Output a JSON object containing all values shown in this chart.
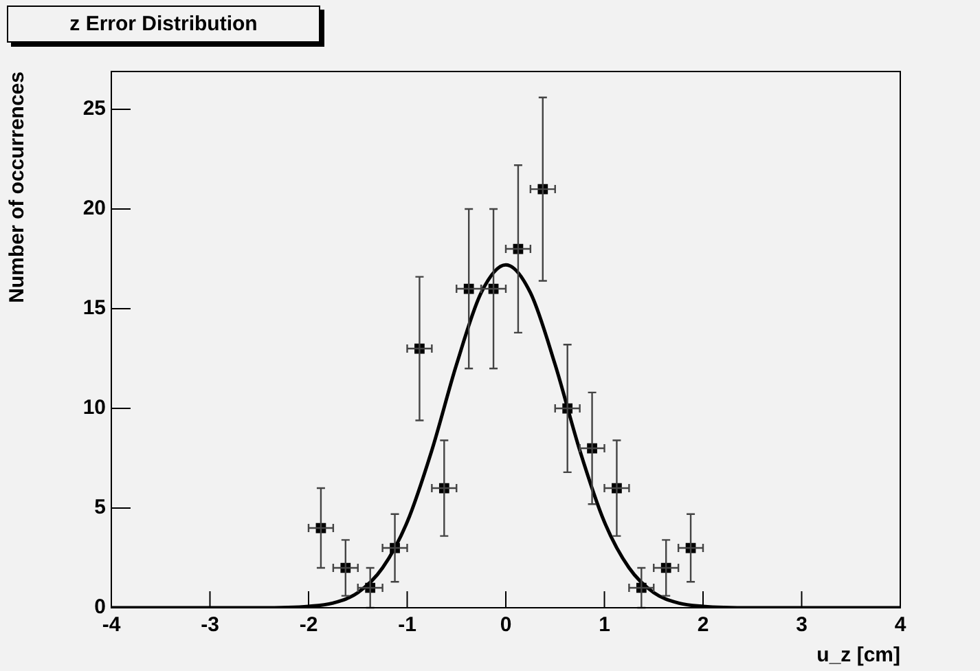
{
  "chart_data": {
    "type": "scatter",
    "title": "z Error Distribution",
    "xlabel": "u_z [cm]",
    "ylabel": "Number of occurrences",
    "xlim": [
      -4,
      4
    ],
    "xticks": [
      -4,
      -3,
      -2,
      -1,
      0,
      1,
      2,
      3,
      4
    ],
    "ylim": [
      0,
      26.9
    ],
    "yticks": [
      0,
      5,
      10,
      15,
      20,
      25
    ],
    "grid": false,
    "legend": false,
    "marker": "square",
    "series": [
      {
        "color": "#000000",
        "x": [
          -1.875,
          -1.625,
          -1.375,
          -1.125,
          -0.875,
          -0.625,
          -0.375,
          -0.125,
          0.125,
          0.375,
          0.625,
          0.875,
          1.125,
          1.375,
          1.625,
          1.875
        ],
        "values": [
          4,
          2,
          1,
          3,
          13,
          6,
          16,
          16,
          18,
          21,
          10,
          8,
          6,
          1,
          2,
          3
        ],
        "errors": [
          2,
          1.4,
          1,
          1.7,
          3.6,
          2.4,
          4,
          4,
          4.2,
          4.6,
          3.2,
          2.8,
          2.4,
          1,
          1.4,
          1.7
        ],
        "xerrors": [
          0.125,
          0.125,
          0.125,
          0.125,
          0.125,
          0.125,
          0.125,
          0.125,
          0.125,
          0.125,
          0.125,
          0.125,
          0.125,
          0.125,
          0.125,
          0.125
        ]
      },
      {
        "type": "line",
        "color": "#000000",
        "marker": "none",
        "x": [
          -4,
          -3,
          -2.5,
          -2,
          -1.75,
          -1.5,
          -1.25,
          -1,
          -0.75,
          -0.5,
          -0.25,
          0,
          0.25,
          0.5,
          0.75,
          1,
          1.25,
          1.5,
          1.75,
          2,
          2.5,
          3,
          4
        ],
        "values": [
          0,
          0,
          0,
          0.07,
          0.24,
          0.76,
          2,
          4.3,
          7.9,
          12.2,
          15.8,
          17.2,
          15.8,
          12.2,
          7.9,
          4.3,
          2,
          0.76,
          0.24,
          0.07,
          0,
          0,
          0
        ]
      }
    ]
  }
}
